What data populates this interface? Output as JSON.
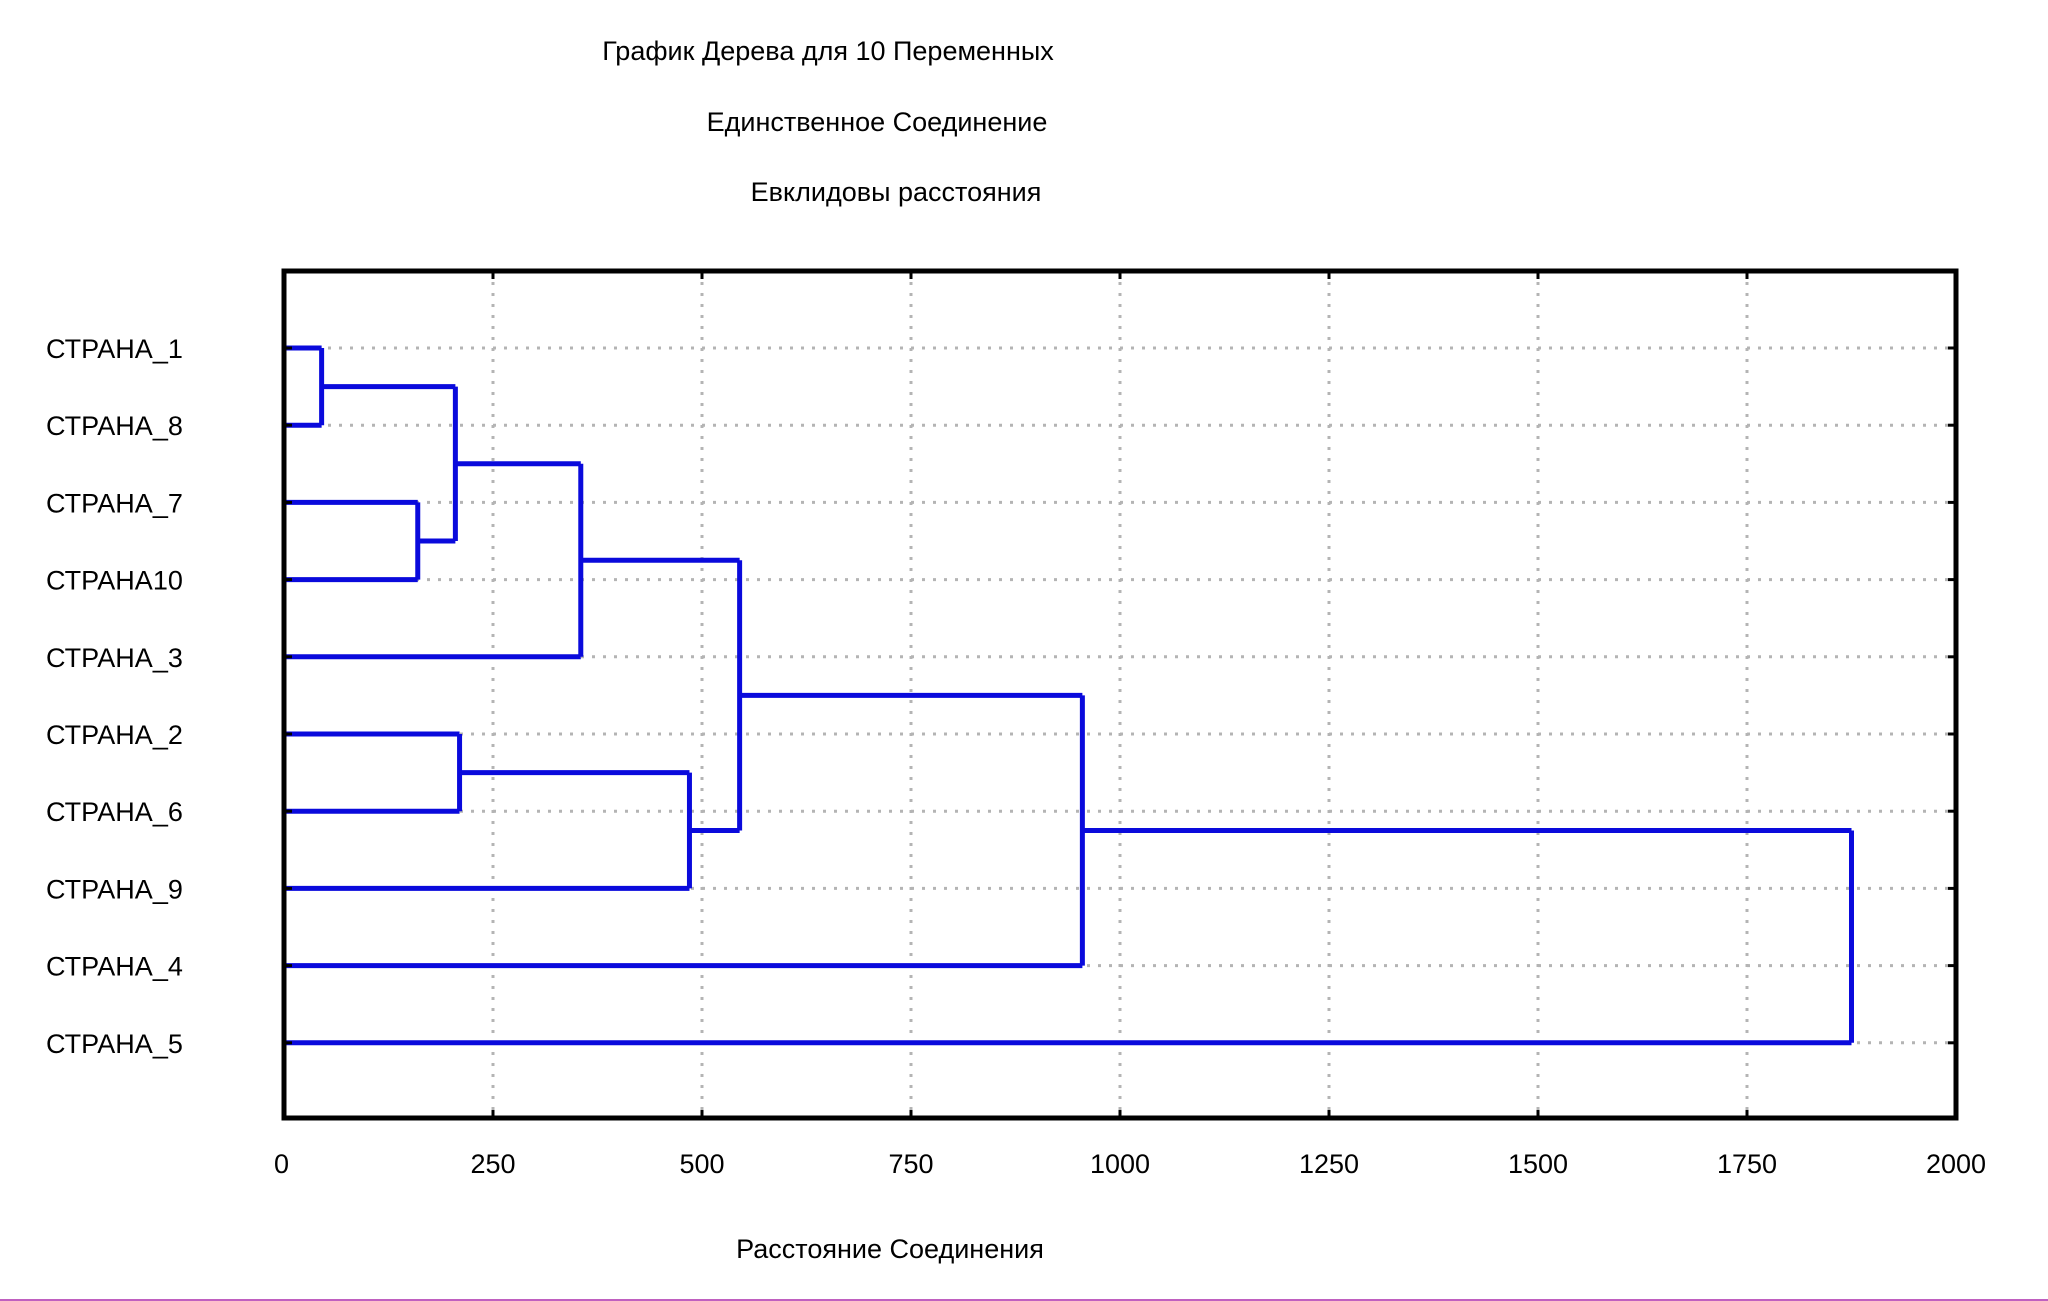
{
  "chart_data": {
    "type": "dendrogram",
    "title": "График Дерева для 10 Переменных",
    "subtitle1": "Единственное Соединение",
    "subtitle2": "Евклидовы расстояния",
    "xlabel": "Расстояние Соединения",
    "ylabel": "",
    "xlim": [
      0,
      2000
    ],
    "x_ticks": [
      0,
      250,
      500,
      750,
      1000,
      1250,
      1500,
      1750,
      2000
    ],
    "grid": true,
    "line_color": "#0a0adc",
    "leaves": [
      "СТРАНА_1",
      "СТРАНА_8",
      "СТРАНА_7",
      "СТРАНА10",
      "СТРАНА_3",
      "СТРАНА_2",
      "СТРАНА_6",
      "СТРАНА_9",
      "СТРАНА_4",
      "СТРАНА_5"
    ],
    "merges": [
      {
        "a": "СТРАНА_1",
        "b": "СТРАНА_8",
        "distance": 45
      },
      {
        "a": "СТРАНА_7",
        "b": "СТРАНА10",
        "distance": 160
      },
      {
        "a": "СТРАНА_1+СТРАНА_8",
        "b": "СТРАНА_7+СТРАНА10",
        "distance": 205
      },
      {
        "a": "СТРАНА_2",
        "b": "СТРАНА_6",
        "distance": 210
      },
      {
        "a": "СТРАНА_1+8+7+10",
        "b": "СТРАНА_3",
        "distance": 355
      },
      {
        "a": "СТРАНА_2+СТРАНА_6",
        "b": "СТРАНА_9",
        "distance": 485
      },
      {
        "a": "СТРАНА_1+8+7+10+3",
        "b": "СТРАНА_2+6+9",
        "distance": 545
      },
      {
        "a": "cluster_8",
        "b": "СТРАНА_4",
        "distance": 955
      },
      {
        "a": "cluster_9",
        "b": "СТРАНА_5",
        "distance": 1875
      }
    ]
  }
}
